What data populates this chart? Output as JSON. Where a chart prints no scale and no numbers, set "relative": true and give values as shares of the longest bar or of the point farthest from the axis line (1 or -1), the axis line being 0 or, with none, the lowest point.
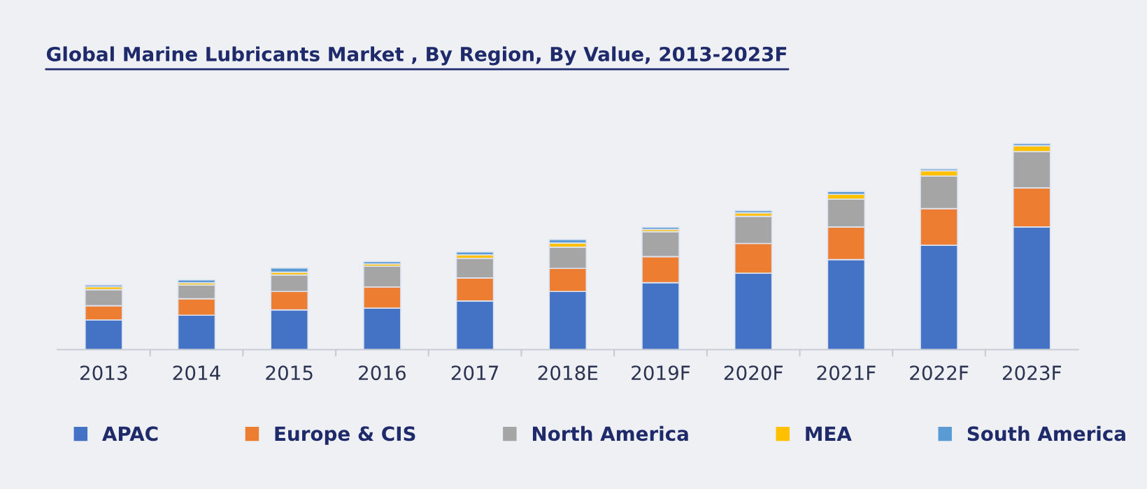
{
  "chart_data": {
    "type": "bar",
    "title": "Global Marine Lubricants Market , By Region, By Value, 2013-2023F",
    "categories": [
      "2013",
      "2014",
      "2015",
      "2016",
      "2017",
      "2018E",
      "2019F",
      "2020F",
      "2021F",
      "2022F",
      "2023F"
    ],
    "relative": true,
    "stacked": true,
    "legend": "bottom",
    "series": [
      {
        "name": "APAC",
        "color": "#4472c4",
        "values": [
          0.144,
          0.167,
          0.193,
          0.201,
          0.236,
          0.282,
          0.325,
          0.371,
          0.437,
          0.506,
          0.595
        ]
      },
      {
        "name": "Europe & CIS",
        "color": "#ed7d31",
        "values": [
          0.069,
          0.08,
          0.089,
          0.103,
          0.112,
          0.112,
          0.126,
          0.144,
          0.158,
          0.178,
          0.19
        ]
      },
      {
        "name": "North America",
        "color": "#a5a5a5",
        "values": [
          0.078,
          0.066,
          0.08,
          0.101,
          0.095,
          0.103,
          0.121,
          0.132,
          0.135,
          0.158,
          0.175
        ]
      },
      {
        "name": "MEA",
        "color": "#ffc000",
        "values": [
          0.014,
          0.011,
          0.014,
          0.011,
          0.017,
          0.02,
          0.011,
          0.017,
          0.023,
          0.026,
          0.029
        ]
      },
      {
        "name": "South America",
        "color": "#5b9bd5",
        "values": [
          0.009,
          0.014,
          0.02,
          0.011,
          0.014,
          0.017,
          0.011,
          0.011,
          0.014,
          0.009,
          0.011
        ]
      }
    ]
  }
}
